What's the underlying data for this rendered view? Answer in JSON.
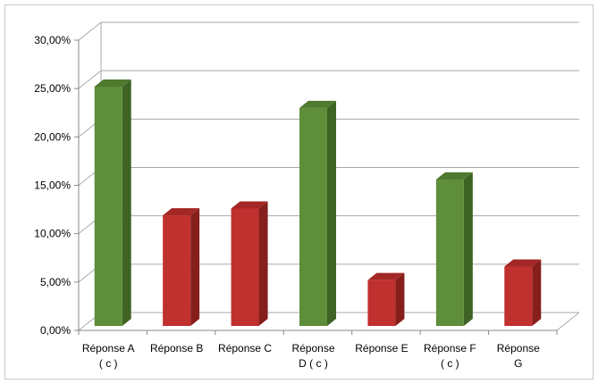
{
  "chart_data": {
    "type": "bar",
    "categories": [
      [
        "Réponse A",
        "( c )"
      ],
      [
        "Réponse B"
      ],
      [
        "Réponse C"
      ],
      [
        "Réponse",
        "D ( c )"
      ],
      [
        "Réponse E"
      ],
      [
        "Réponse F",
        "( c )"
      ],
      [
        "Réponse",
        "G"
      ]
    ],
    "values": [
      25.2,
      11.9,
      12.6,
      23.0,
      5.2,
      15.6,
      6.6
    ],
    "bar_kinds": [
      "correct",
      "wrong",
      "wrong",
      "correct",
      "wrong",
      "correct",
      "wrong"
    ],
    "y_ticks": [
      "0,00%",
      "5,00%",
      "10,00%",
      "15,00%",
      "20,00%",
      "25,00%",
      "30,00%"
    ],
    "ylim": [
      0,
      30
    ],
    "yunit": "percent",
    "grid": true,
    "legend": "none",
    "colors": {
      "correct": {
        "front": "#5f8e3a",
        "side": "#3f6324",
        "top": "#4e7a2e"
      },
      "wrong": {
        "front": "#c0302e",
        "side": "#861e1c",
        "top": "#a32725"
      },
      "grid": "#aaaaaa",
      "axis": "#888888"
    }
  }
}
